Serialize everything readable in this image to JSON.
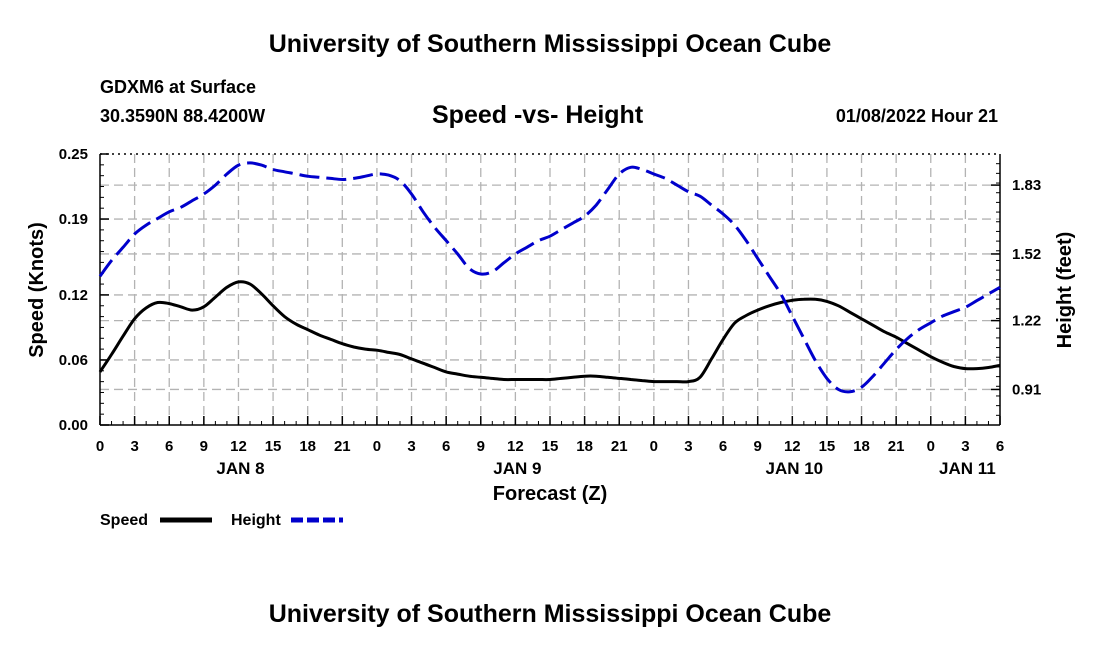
{
  "header": {
    "title": "University of Southern Mississippi Ocean Cube",
    "station": "GDXM6 at Surface",
    "coordinates": "30.3590N  88.4200W",
    "subtitle": "Speed -vs- Height",
    "datetime": "01/08/2022 Hour 21"
  },
  "footer": {
    "title": "University of Southern Mississippi Ocean Cube"
  },
  "chart_data": {
    "type": "line",
    "title": "Speed -vs- Height",
    "xlabel": "Forecast (Z)",
    "ylabel": "Speed (Knots)",
    "y2label": "Height (feet)",
    "xlim": [
      0,
      78
    ],
    "ylim": [
      0,
      0.25
    ],
    "y2lim": [
      0.75,
      1.97
    ],
    "grid": true,
    "x_ticks": [
      0,
      3,
      6,
      9,
      12,
      15,
      18,
      21,
      24,
      27,
      30,
      33,
      36,
      39,
      42,
      45,
      48,
      51,
      54,
      57,
      60,
      63,
      66,
      69,
      72,
      75,
      78
    ],
    "x_tick_labels": [
      "0",
      "3",
      "6",
      "9",
      "12",
      "15",
      "18",
      "21",
      "0",
      "3",
      "6",
      "9",
      "12",
      "15",
      "18",
      "21",
      "0",
      "3",
      "6",
      "9",
      "12",
      "15",
      "18",
      "21",
      "0",
      "3",
      "6"
    ],
    "day_labels": [
      {
        "x": 12,
        "label": "JAN 8"
      },
      {
        "x": 36,
        "label": "JAN 9"
      },
      {
        "x": 60,
        "label": "JAN 10"
      },
      {
        "x": 75,
        "label": "JAN 11"
      }
    ],
    "y_ticks": [
      0.0,
      0.06,
      0.12,
      0.19,
      0.25
    ],
    "y_tick_labels": [
      "0.00",
      "0.06",
      "0.12",
      "0.19",
      "0.25"
    ],
    "y2_ticks": [
      0.91,
      1.22,
      1.52,
      1.83
    ],
    "y2_tick_labels": [
      "0.91",
      "1.22",
      "1.52",
      "1.83"
    ],
    "legend_position": "bottom-left",
    "series": [
      {
        "name": "Speed",
        "axis": "left",
        "color": "#000000",
        "dash": "solid",
        "x": [
          0,
          1,
          2,
          3,
          4,
          5,
          6,
          7,
          8,
          9,
          10,
          11,
          12,
          13,
          14,
          15,
          16,
          17,
          18,
          19,
          20,
          21,
          22,
          23,
          24,
          25,
          26,
          27,
          28,
          29,
          30,
          31,
          32,
          33,
          34,
          35,
          36,
          37,
          38,
          39,
          40,
          41,
          42,
          43,
          44,
          45,
          46,
          47,
          48,
          49,
          50,
          51,
          52,
          53,
          54,
          55,
          56,
          57,
          58,
          59,
          60,
          61,
          62,
          63,
          64,
          65,
          66,
          67,
          68,
          69,
          70,
          71,
          72,
          73,
          74,
          75,
          76,
          77,
          78
        ],
        "values": [
          0.049,
          0.065,
          0.082,
          0.098,
          0.108,
          0.113,
          0.112,
          0.109,
          0.106,
          0.109,
          0.118,
          0.127,
          0.132,
          0.13,
          0.121,
          0.11,
          0.1,
          0.093,
          0.088,
          0.083,
          0.079,
          0.075,
          0.072,
          0.07,
          0.069,
          0.067,
          0.065,
          0.061,
          0.057,
          0.053,
          0.049,
          0.047,
          0.045,
          0.044,
          0.043,
          0.042,
          0.042,
          0.042,
          0.042,
          0.042,
          0.043,
          0.044,
          0.045,
          0.045,
          0.044,
          0.043,
          0.042,
          0.041,
          0.04,
          0.04,
          0.04,
          0.04,
          0.044,
          0.061,
          0.079,
          0.094,
          0.101,
          0.106,
          0.11,
          0.113,
          0.115,
          0.116,
          0.116,
          0.114,
          0.11,
          0.104,
          0.098,
          0.092,
          0.086,
          0.081,
          0.075,
          0.069,
          0.063,
          0.058,
          0.054,
          0.052,
          0.052,
          0.053,
          0.055
        ]
      },
      {
        "name": "Height",
        "axis": "right",
        "color": "#0000cc",
        "dash": "dashed",
        "x": [
          0,
          1,
          2,
          3,
          4,
          5,
          6,
          7,
          8,
          9,
          10,
          11,
          12,
          13,
          14,
          15,
          16,
          17,
          18,
          19,
          20,
          21,
          22,
          23,
          24,
          25,
          26,
          27,
          28,
          29,
          30,
          31,
          32,
          33,
          34,
          35,
          36,
          37,
          38,
          39,
          40,
          41,
          42,
          43,
          44,
          45,
          46,
          47,
          48,
          49,
          50,
          51,
          52,
          53,
          54,
          55,
          56,
          57,
          58,
          59,
          60,
          61,
          62,
          63,
          64,
          65,
          66,
          67,
          68,
          69,
          70,
          71,
          72,
          73,
          74,
          75,
          76,
          77,
          78
        ],
        "values": [
          1.42,
          1.49,
          1.55,
          1.61,
          1.65,
          1.68,
          1.71,
          1.73,
          1.76,
          1.79,
          1.83,
          1.88,
          1.92,
          1.93,
          1.92,
          1.9,
          1.89,
          1.88,
          1.87,
          1.865,
          1.86,
          1.855,
          1.86,
          1.87,
          1.88,
          1.875,
          1.85,
          1.79,
          1.71,
          1.64,
          1.58,
          1.52,
          1.455,
          1.43,
          1.44,
          1.48,
          1.52,
          1.55,
          1.58,
          1.6,
          1.63,
          1.66,
          1.69,
          1.74,
          1.81,
          1.88,
          1.91,
          1.9,
          1.88,
          1.86,
          1.83,
          1.8,
          1.78,
          1.74,
          1.7,
          1.65,
          1.58,
          1.5,
          1.42,
          1.34,
          1.24,
          1.14,
          1.04,
          0.96,
          0.91,
          0.9,
          0.92,
          0.97,
          1.03,
          1.09,
          1.14,
          1.18,
          1.21,
          1.24,
          1.26,
          1.28,
          1.31,
          1.34,
          1.37
        ]
      }
    ]
  }
}
